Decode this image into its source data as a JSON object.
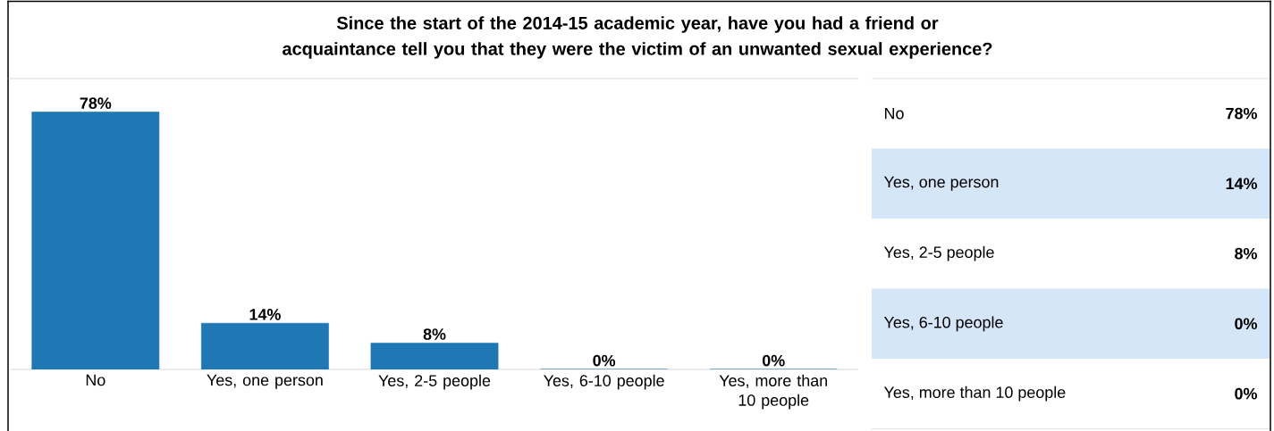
{
  "chart_data": {
    "type": "bar",
    "title": "Since the start of the 2014-15 academic year, have you had a friend or acquaintance tell you that they were the victim of an unwanted sexual experience?",
    "categories": [
      "No",
      "Yes, one person",
      "Yes, 2-5 people",
      "Yes, 6-10 people",
      "Yes, more than 10 people"
    ],
    "values": [
      78,
      14,
      8,
      0,
      0
    ],
    "value_labels": [
      "78%",
      "14%",
      "8%",
      "0%",
      "0%"
    ],
    "color": "#1f77b4"
  }
}
